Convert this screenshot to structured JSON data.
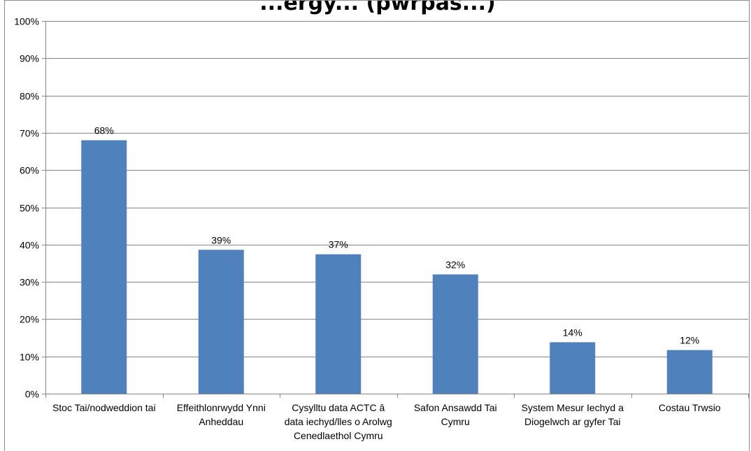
{
  "chart_data": {
    "type": "bar",
    "title": "...ergy... (pwrpas...)",
    "categories": [
      [
        "Stoc Tai/nodweddion tai"
      ],
      [
        "Effeithlonrwydd Ynni",
        "Anheddau"
      ],
      [
        "Cysylltu data ACTC â",
        "data iechyd/lles o Arolwg",
        "Cenedlaethol Cymru"
      ],
      [
        "Safon Ansawdd Tai",
        "Cymru"
      ],
      [
        "System Mesur Iechyd a",
        "Diogelwch ar gyfer Tai"
      ],
      [
        "Costau Trwsio"
      ]
    ],
    "values": [
      68,
      38.6,
      37.4,
      32,
      13.8,
      11.7
    ],
    "data_labels": [
      "68%",
      "39%",
      "37%",
      "32%",
      "14%",
      "12%"
    ],
    "ylim": [
      0,
      100
    ],
    "yticks": [
      0,
      10,
      20,
      30,
      40,
      50,
      60,
      70,
      80,
      90,
      100
    ],
    "ytick_labels": [
      "0%",
      "10%",
      "20%",
      "30%",
      "40%",
      "50%",
      "60%",
      "70%",
      "80%",
      "90%",
      "100%"
    ],
    "xlabel": "",
    "ylabel": "",
    "grid": true,
    "legend": "none",
    "colors": {
      "bar": "#4f81bd",
      "grid": "#868686",
      "axis": "#868686",
      "frame": "#8c8c8c"
    }
  }
}
